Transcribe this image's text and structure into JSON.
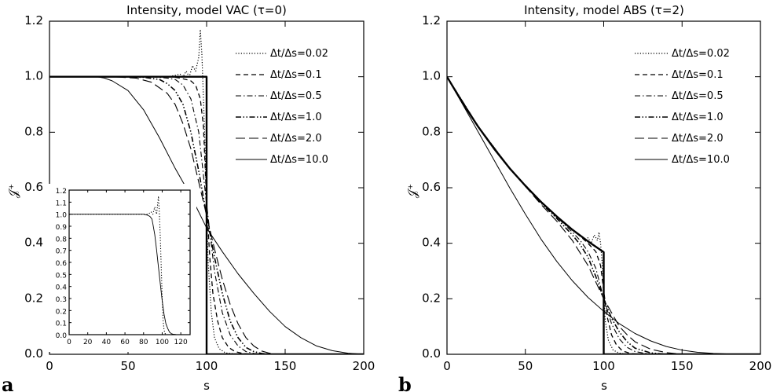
{
  "chart_data": [
    {
      "panel_label": "a",
      "type": "line",
      "title": "Intensity, model VAC (τ=0)",
      "xlabel": "s",
      "ylabel": "𝒥⁺",
      "xlim": [
        0,
        200
      ],
      "ylim": [
        0,
        1.2
      ],
      "xticks": [
        "0",
        "50",
        "100",
        "150",
        "200"
      ],
      "yticks": [
        "0.0",
        "0.2",
        "0.4",
        "0.6",
        "0.8",
        "1.0",
        "1.2"
      ],
      "legend_position": "top-right",
      "series": [
        {
          "name": "Δt/Δs=0.02",
          "style": "dotted",
          "x": [
            0,
            40,
            60,
            70,
            75,
            80,
            83,
            85,
            87,
            89,
            91,
            93,
            95,
            96,
            97,
            98,
            99,
            100,
            101,
            103,
            105,
            108,
            112,
            118,
            125
          ],
          "y": [
            1.0,
            1.0,
            1.0,
            1.0,
            1.0,
            1.005,
            1.01,
            1.0,
            1.02,
            1.0,
            1.04,
            1.02,
            1.07,
            1.17,
            1.08,
            0.92,
            0.75,
            0.5,
            0.33,
            0.15,
            0.06,
            0.02,
            0.005,
            0.001,
            0
          ]
        },
        {
          "name": "Δt/Δs=0.1",
          "style": "dashed",
          "x": [
            0,
            50,
            70,
            78,
            83,
            87,
            90,
            93,
            96,
            98,
            100,
            102,
            104,
            107,
            110,
            114,
            118,
            124,
            130
          ],
          "y": [
            1.0,
            1.0,
            1.0,
            1.0,
            0.995,
            0.99,
            0.985,
            0.97,
            0.92,
            0.82,
            0.55,
            0.35,
            0.22,
            0.12,
            0.06,
            0.025,
            0.01,
            0.002,
            0
          ]
        },
        {
          "name": "Δt/Δs=0.5",
          "style": "dashdot",
          "x": [
            0,
            50,
            65,
            75,
            80,
            85,
            90,
            95,
            100,
            105,
            110,
            115,
            120,
            125,
            130,
            135
          ],
          "y": [
            1.0,
            1.0,
            1.0,
            0.995,
            0.99,
            0.97,
            0.92,
            0.8,
            0.54,
            0.3,
            0.15,
            0.07,
            0.03,
            0.01,
            0.003,
            0
          ]
        },
        {
          "name": "Δt/Δs=1.0",
          "style": "dashdotdot",
          "x": [
            0,
            45,
            60,
            70,
            75,
            80,
            85,
            90,
            95,
            100,
            105,
            110,
            115,
            120,
            125,
            130,
            135,
            140
          ],
          "y": [
            1.0,
            1.0,
            0.998,
            0.99,
            0.975,
            0.95,
            0.9,
            0.8,
            0.66,
            0.5,
            0.35,
            0.22,
            0.12,
            0.06,
            0.025,
            0.01,
            0.003,
            0
          ]
        },
        {
          "name": "Δt/Δs=2.0",
          "style": "longdash",
          "x": [
            0,
            40,
            55,
            65,
            75,
            80,
            85,
            90,
            95,
            100,
            105,
            110,
            115,
            120,
            125,
            130,
            135,
            140,
            145
          ],
          "y": [
            1.0,
            1.0,
            0.995,
            0.98,
            0.94,
            0.9,
            0.83,
            0.74,
            0.62,
            0.5,
            0.38,
            0.27,
            0.18,
            0.11,
            0.06,
            0.03,
            0.012,
            0.004,
            0
          ]
        },
        {
          "name": "Δt/Δs=10.0",
          "style": "solid-thin",
          "x": [
            0,
            20,
            30,
            35,
            40,
            50,
            60,
            70,
            80,
            90,
            100,
            110,
            120,
            130,
            140,
            150,
            160,
            170,
            180,
            190,
            200
          ],
          "y": [
            1.0,
            1.0,
            1.0,
            0.995,
            0.985,
            0.95,
            0.88,
            0.78,
            0.67,
            0.57,
            0.455,
            0.37,
            0.29,
            0.22,
            0.155,
            0.1,
            0.06,
            0.03,
            0.013,
            0.004,
            0
          ]
        },
        {
          "name": "",
          "style": "solid-thick",
          "x": [
            0,
            100,
            100,
            200
          ],
          "y": [
            1.0,
            1.0,
            0.0,
            0.0
          ]
        }
      ],
      "inset": {
        "xlim": [
          0,
          130
        ],
        "ylim": [
          0,
          1.2
        ],
        "xticks": [
          "0",
          "20",
          "40",
          "60",
          "80",
          "100",
          "120"
        ],
        "yticks": [
          "0.0",
          "0.1",
          "0.2",
          "0.3",
          "0.4",
          "0.5",
          "0.6",
          "0.7",
          "0.8",
          "0.9",
          "1.0",
          "1.1",
          "1.2"
        ],
        "series": [
          {
            "style": "dotted",
            "x": [
              0,
              60,
              80,
              85,
              88,
              90,
              92,
              94,
              96,
              97,
              98,
              99,
              100,
              101,
              102,
              103,
              105,
              110
            ],
            "y": [
              1.0,
              1.0,
              1.0,
              1.0,
              1.02,
              1.0,
              1.06,
              1.0,
              1.15,
              1.0,
              0.8,
              0.55,
              0.3,
              0.12,
              0.04,
              0.01,
              0,
              0
            ]
          },
          {
            "style": "solid",
            "x": [
              0,
              60,
              80,
              85,
              87,
              88,
              89,
              90,
              92,
              94,
              96,
              98,
              100,
              102,
              104,
              106,
              108,
              110,
              112,
              115,
              120,
              125,
              130
            ],
            "y": [
              1.0,
              1.0,
              1.0,
              0.99,
              0.98,
              0.97,
              0.96,
              0.92,
              0.83,
              0.7,
              0.56,
              0.42,
              0.28,
              0.17,
              0.09,
              0.05,
              0.02,
              0.008,
              0.003,
              0.001,
              0,
              0,
              0
            ]
          }
        ]
      }
    },
    {
      "panel_label": "b",
      "type": "line",
      "title": "Intensity, model ABS (τ=2)",
      "xlabel": "s",
      "ylabel": "𝒥⁺",
      "xlim": [
        0,
        200
      ],
      "ylim": [
        0,
        1.2
      ],
      "xticks": [
        "0",
        "50",
        "100",
        "150",
        "200"
      ],
      "yticks": [
        "0.0",
        "0.2",
        "0.4",
        "0.6",
        "0.8",
        "1.0",
        "1.2"
      ],
      "legend_position": "top-right",
      "series": [
        {
          "name": "Δt/Δs=0.02",
          "style": "dotted",
          "x": [
            0,
            20,
            40,
            60,
            70,
            80,
            85,
            88,
            90,
            92,
            94,
            96,
            97,
            98,
            99,
            100,
            101,
            103,
            106,
            110,
            115
          ],
          "y": [
            1.0,
            0.82,
            0.67,
            0.549,
            0.497,
            0.449,
            0.43,
            0.41,
            0.42,
            0.4,
            0.43,
            0.41,
            0.44,
            0.4,
            0.33,
            0.22,
            0.12,
            0.05,
            0.015,
            0.004,
            0
          ]
        },
        {
          "name": "Δt/Δs=0.1",
          "style": "dashed",
          "x": [
            0,
            20,
            40,
            60,
            70,
            80,
            85,
            90,
            95,
            98,
            100,
            102,
            105,
            108,
            112,
            118,
            125
          ],
          "y": [
            1.0,
            0.82,
            0.67,
            0.549,
            0.497,
            0.449,
            0.425,
            0.4,
            0.37,
            0.32,
            0.23,
            0.14,
            0.07,
            0.035,
            0.012,
            0.002,
            0
          ]
        },
        {
          "name": "Δt/Δs=0.5",
          "style": "dashdot",
          "x": [
            0,
            20,
            40,
            60,
            70,
            80,
            85,
            90,
            95,
            100,
            105,
            110,
            115,
            120,
            130
          ],
          "y": [
            1.0,
            0.82,
            0.67,
            0.549,
            0.495,
            0.44,
            0.41,
            0.37,
            0.31,
            0.2,
            0.11,
            0.055,
            0.025,
            0.01,
            0
          ]
        },
        {
          "name": "Δt/Δs=1.0",
          "style": "dashdotdot",
          "x": [
            0,
            20,
            40,
            60,
            70,
            80,
            85,
            90,
            95,
            100,
            105,
            110,
            115,
            120,
            130,
            140
          ],
          "y": [
            1.0,
            0.82,
            0.67,
            0.545,
            0.49,
            0.43,
            0.395,
            0.35,
            0.28,
            0.2,
            0.13,
            0.08,
            0.045,
            0.022,
            0.005,
            0
          ]
        },
        {
          "name": "Δt/Δs=2.0",
          "style": "longdash",
          "x": [
            0,
            20,
            40,
            60,
            70,
            80,
            90,
            95,
            100,
            105,
            110,
            115,
            120,
            130,
            140,
            150
          ],
          "y": [
            1.0,
            0.82,
            0.67,
            0.54,
            0.48,
            0.41,
            0.32,
            0.26,
            0.2,
            0.15,
            0.1,
            0.07,
            0.045,
            0.018,
            0.006,
            0
          ]
        },
        {
          "name": "Δt/Δs=10.0",
          "style": "solid-thin",
          "x": [
            0,
            10,
            20,
            30,
            40,
            50,
            60,
            70,
            80,
            90,
            100,
            110,
            120,
            130,
            140,
            150,
            160,
            170,
            180,
            190,
            200
          ],
          "y": [
            1.0,
            0.9,
            0.8,
            0.7,
            0.6,
            0.505,
            0.415,
            0.335,
            0.265,
            0.205,
            0.155,
            0.11,
            0.075,
            0.048,
            0.028,
            0.015,
            0.007,
            0.003,
            0.001,
            0,
            0
          ]
        },
        {
          "name": "",
          "style": "solid-thick",
          "x": [
            0,
            10,
            20,
            30,
            40,
            50,
            60,
            70,
            80,
            90,
            100,
            100,
            200
          ],
          "y": [
            1.0,
            0.905,
            0.819,
            0.741,
            0.67,
            0.607,
            0.549,
            0.497,
            0.449,
            0.407,
            0.368,
            0.0,
            0.0
          ]
        }
      ]
    }
  ],
  "panel_letters": [
    "a",
    "b"
  ]
}
